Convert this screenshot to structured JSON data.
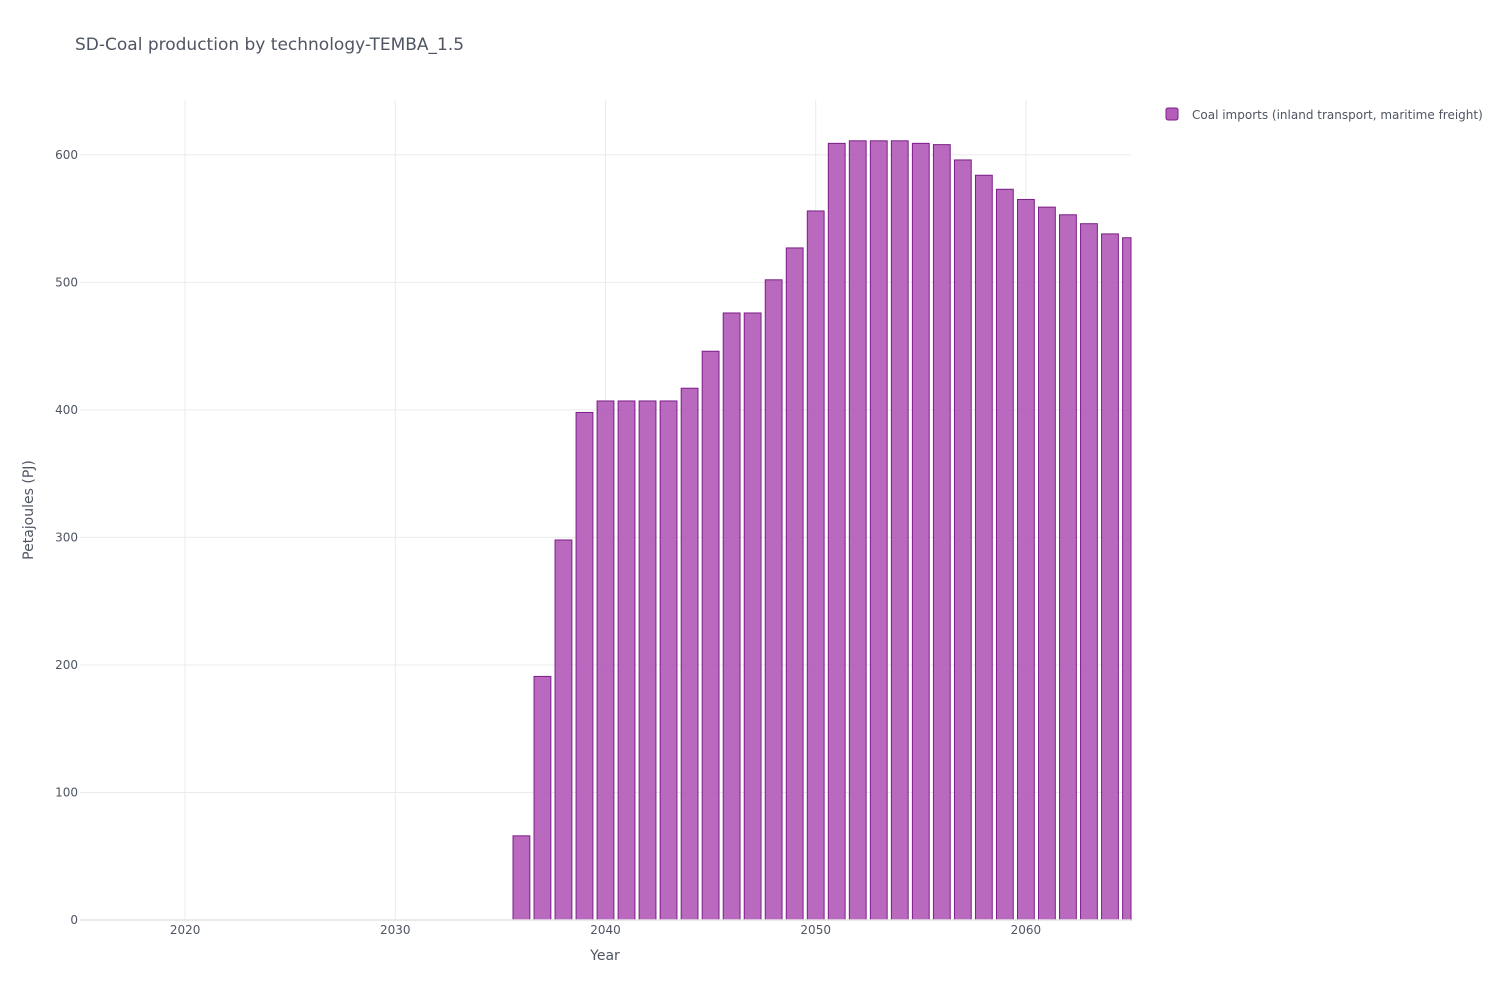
{
  "chart_data": {
    "type": "bar",
    "title": "SD-Coal production by technology-TEMBA_1.5",
    "xlabel": "Year",
    "ylabel": "Petajoules (PJ)",
    "xlim": [
      2015,
      2065
    ],
    "ylim": [
      0,
      643
    ],
    "x_ticks": [
      2020,
      2030,
      2040,
      2050,
      2060
    ],
    "y_ticks": [
      0,
      100,
      200,
      300,
      400,
      500,
      600
    ],
    "grid": true,
    "legend_position": "top-right",
    "series": [
      {
        "name": "Coal imports (inland transport, maritime freight)",
        "color": "#b35cb8",
        "edge_color": "#7b1f88",
        "x": [
          2036,
          2037,
          2038,
          2039,
          2040,
          2041,
          2042,
          2043,
          2044,
          2045,
          2046,
          2047,
          2048,
          2049,
          2050,
          2051,
          2052,
          2053,
          2054,
          2055,
          2056,
          2057,
          2058,
          2059,
          2060,
          2061,
          2062,
          2063,
          2064,
          2065
        ],
        "values": [
          66,
          191,
          298,
          398,
          407,
          407,
          407,
          407,
          417,
          446,
          476,
          476,
          502,
          527,
          556,
          609,
          611,
          611,
          611,
          609,
          608,
          596,
          584,
          573,
          565,
          559,
          553,
          546,
          538,
          535
        ]
      }
    ]
  }
}
